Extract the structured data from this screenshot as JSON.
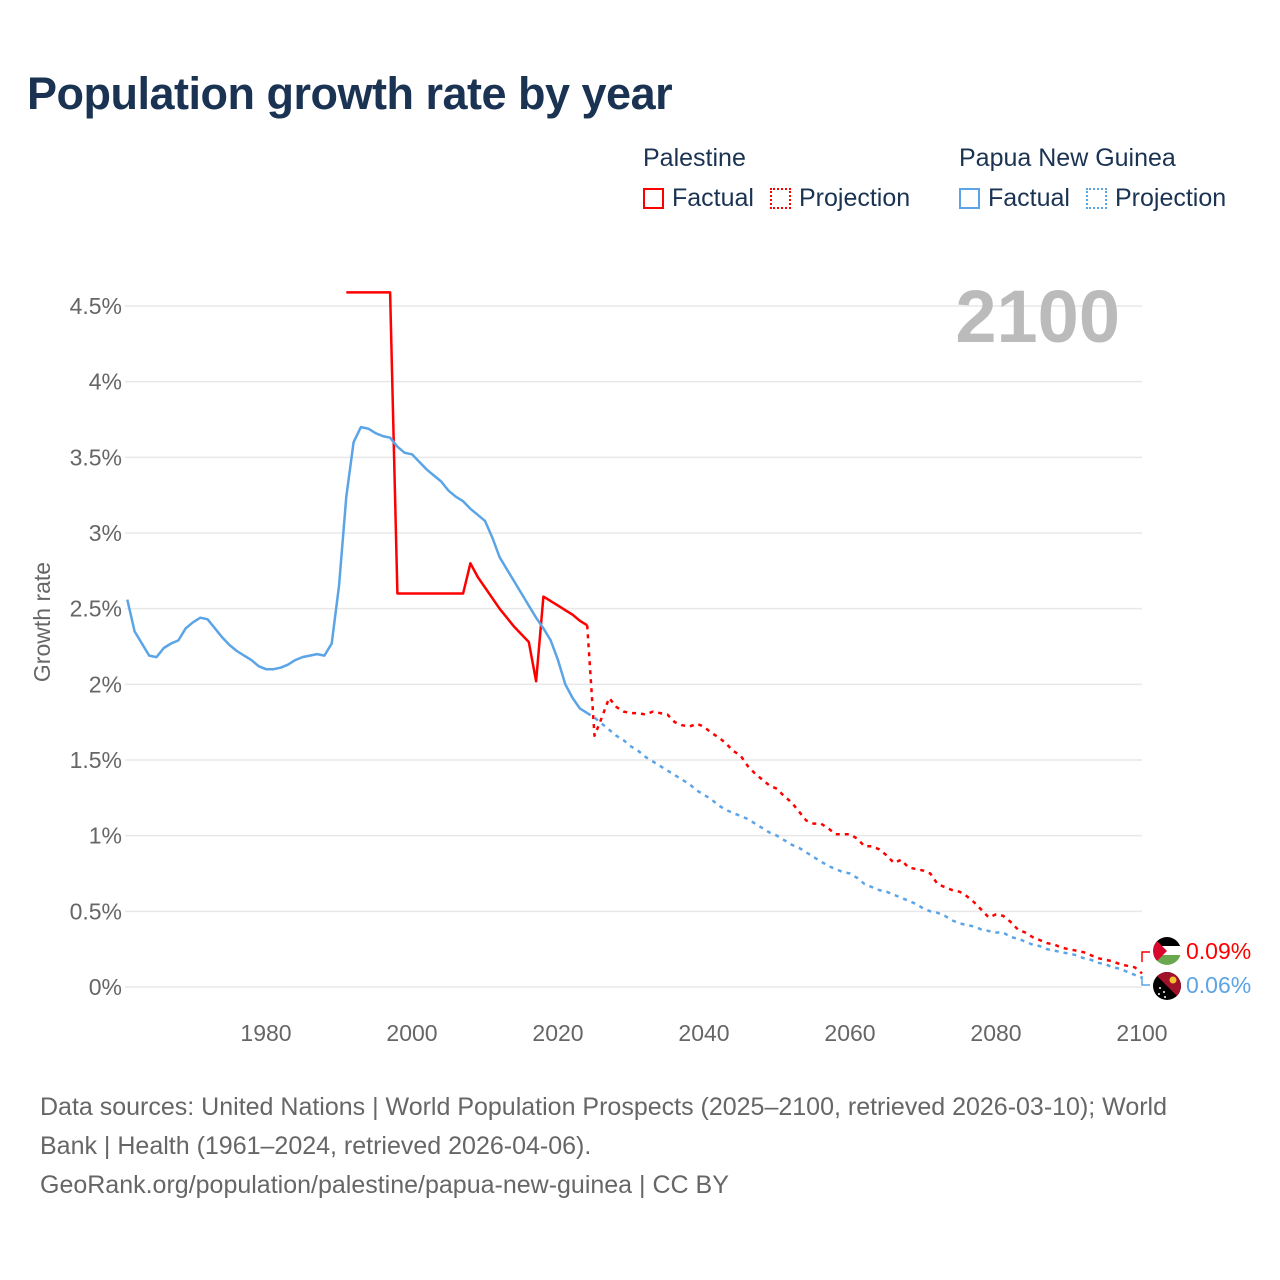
{
  "title": "Population growth rate by year",
  "legend": {
    "groups": [
      {
        "country": "Palestine",
        "factual": "Factual",
        "projection": "Projection",
        "color": "#ff0000"
      },
      {
        "country": "Papua New Guinea",
        "factual": "Factual",
        "projection": "Projection",
        "color": "#5ba4e6"
      }
    ]
  },
  "chart_data": {
    "type": "line",
    "title": "Population growth rate by year",
    "ylabel": "Growth rate",
    "xlabel": "",
    "xlim": [
      1961,
      2100
    ],
    "ylim": [
      0,
      4.5
    ],
    "grid": true,
    "x_ticks": [
      1980,
      2000,
      2020,
      2040,
      2060,
      2080,
      2100
    ],
    "y_ticks": [
      0,
      0.5,
      1,
      1.5,
      2,
      2.5,
      3,
      3.5,
      4,
      4.5
    ],
    "y_tick_labels": [
      "0%",
      "0.5%",
      "1%",
      "1.5%",
      "2%",
      "2.5%",
      "3%",
      "3.5%",
      "4%",
      "4.5%"
    ],
    "current_year_label": "2100",
    "legend_position": "top-right",
    "series": [
      {
        "name": "Palestine Factual",
        "country": "Palestine",
        "style": "solid",
        "color": "#ff0000",
        "start_year": 1991,
        "values": [
          4.59,
          4.59,
          4.59,
          4.59,
          4.59,
          4.59,
          4.59,
          2.6,
          2.6,
          2.6,
          2.6,
          2.6,
          2.6,
          2.6,
          2.6,
          2.6,
          2.6,
          2.8,
          2.71,
          2.64,
          2.57,
          2.5,
          2.44,
          2.38,
          2.33,
          2.28,
          2.02,
          2.58,
          2.55,
          2.52,
          2.49,
          2.46,
          2.42,
          2.39
        ]
      },
      {
        "name": "Palestine Projection",
        "country": "Palestine",
        "style": "dotted",
        "color": "#ff0000",
        "start_year": 2024,
        "values": [
          2.39,
          1.66,
          1.78,
          1.91,
          1.85,
          1.82,
          1.81,
          1.81,
          1.8,
          1.82,
          1.81,
          1.8,
          1.75,
          1.73,
          1.72,
          1.74,
          1.72,
          1.68,
          1.65,
          1.61,
          1.56,
          1.53,
          1.46,
          1.41,
          1.37,
          1.33,
          1.31,
          1.26,
          1.22,
          1.16,
          1.1,
          1.08,
          1.08,
          1.05,
          1.01,
          1.01,
          1.01,
          0.98,
          0.93,
          0.93,
          0.91,
          0.87,
          0.82,
          0.84,
          0.79,
          0.78,
          0.77,
          0.75,
          0.68,
          0.66,
          0.64,
          0.63,
          0.6,
          0.56,
          0.51,
          0.46,
          0.48,
          0.47,
          0.43,
          0.38,
          0.36,
          0.33,
          0.31,
          0.29,
          0.28,
          0.26,
          0.25,
          0.24,
          0.23,
          0.21,
          0.19,
          0.18,
          0.17,
          0.15,
          0.14,
          0.13,
          0.09
        ]
      },
      {
        "name": "Papua New Guinea Factual",
        "country": "Papua New Guinea",
        "style": "solid",
        "color": "#5ba4e6",
        "start_year": 1961,
        "values": [
          2.56,
          2.35,
          2.27,
          2.19,
          2.18,
          2.24,
          2.27,
          2.29,
          2.37,
          2.41,
          2.44,
          2.43,
          2.37,
          2.31,
          2.26,
          2.22,
          2.19,
          2.16,
          2.12,
          2.1,
          2.1,
          2.11,
          2.13,
          2.16,
          2.18,
          2.19,
          2.2,
          2.19,
          2.27,
          2.65,
          3.24,
          3.6,
          3.7,
          3.69,
          3.66,
          3.64,
          3.63,
          3.57,
          3.53,
          3.52,
          3.47,
          3.42,
          3.38,
          3.34,
          3.28,
          3.24,
          3.21,
          3.16,
          3.12,
          3.08,
          2.97,
          2.84,
          2.76,
          2.68,
          2.6,
          2.52,
          2.44,
          2.37,
          2.29,
          2.16,
          2.0,
          1.91,
          1.84,
          1.81
        ]
      },
      {
        "name": "Papua New Guinea Projection",
        "country": "Papua New Guinea",
        "style": "dotted",
        "color": "#5ba4e6",
        "start_year": 2024,
        "values": [
          1.81,
          1.78,
          1.74,
          1.7,
          1.66,
          1.63,
          1.59,
          1.56,
          1.52,
          1.49,
          1.46,
          1.43,
          1.4,
          1.37,
          1.34,
          1.3,
          1.27,
          1.24,
          1.2,
          1.17,
          1.15,
          1.13,
          1.11,
          1.08,
          1.05,
          1.02,
          1.0,
          0.97,
          0.94,
          0.92,
          0.89,
          0.86,
          0.83,
          0.8,
          0.78,
          0.76,
          0.75,
          0.72,
          0.68,
          0.66,
          0.64,
          0.63,
          0.61,
          0.59,
          0.57,
          0.55,
          0.52,
          0.5,
          0.49,
          0.47,
          0.44,
          0.42,
          0.41,
          0.4,
          0.38,
          0.37,
          0.36,
          0.36,
          0.33,
          0.32,
          0.3,
          0.28,
          0.27,
          0.25,
          0.24,
          0.23,
          0.22,
          0.21,
          0.19,
          0.18,
          0.16,
          0.15,
          0.13,
          0.12,
          0.1,
          0.08,
          0.06
        ]
      }
    ],
    "end_labels": [
      {
        "country": "Palestine",
        "label": "0.09%",
        "color": "#ff0000",
        "flag": "palestine-flag"
      },
      {
        "country": "Papua New Guinea",
        "label": "0.06%",
        "color": "#5ba4e6",
        "flag": "papua-new-guinea-flag"
      }
    ]
  },
  "footer": {
    "sources": "Data sources: United Nations | World Population Prospects (2025–2100, retrieved 2026-03-10); World Bank | Health (1961–2024, retrieved 2026-04-06).",
    "attribution": "GeoRank.org/population/palestine/papua-new-guinea | CC BY"
  }
}
